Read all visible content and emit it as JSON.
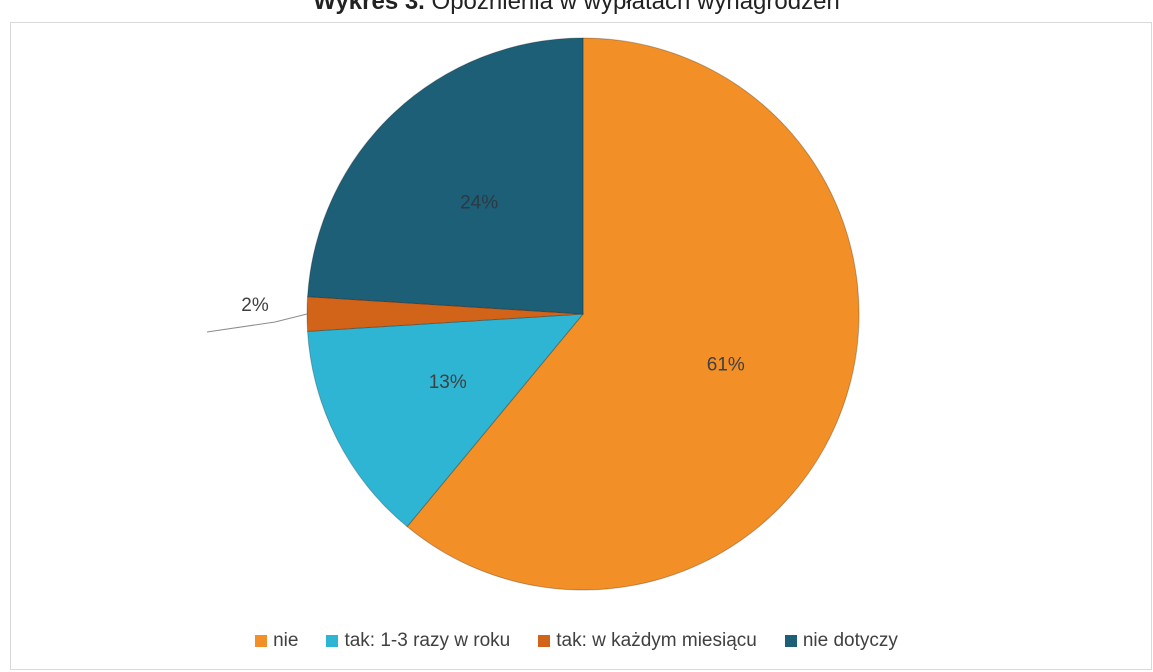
{
  "title": {
    "prefix": "Wykres 3.",
    "text": "Opóźnienia w wypłatach wynagrodzeń"
  },
  "colors": {
    "nie": "#F28F27",
    "tak_1_3": "#2FB5D4",
    "tak_kazdy": "#D2641A",
    "nie_dotyczy": "#1D5F77"
  },
  "chart_data": {
    "type": "pie",
    "title": "Wykres 3. Opóźnienia w wypłatach wynagrodzeń",
    "categories": [
      "nie",
      "tak: 1-3 razy w roku",
      "tak: w każdym miesiącu",
      "nie dotyczy"
    ],
    "values": [
      61,
      13,
      2,
      24
    ],
    "labels": [
      "61%",
      "13%",
      "2%",
      "24%"
    ],
    "legend_position": "bottom",
    "series_colors": [
      "#F28F27",
      "#2FB5D4",
      "#D2641A",
      "#1D5F77"
    ]
  }
}
